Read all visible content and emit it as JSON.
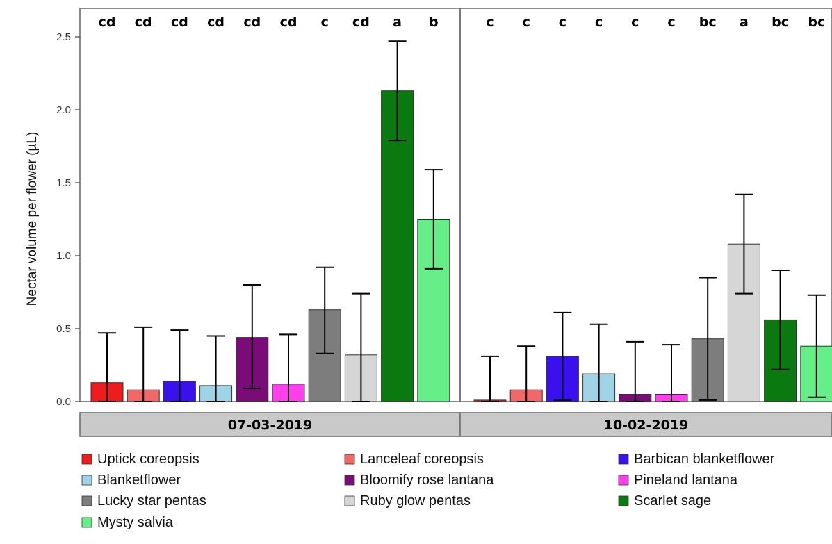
{
  "chart_data": {
    "type": "bar",
    "ylabel": "Nectar volume per flower (µL)",
    "ylim": [
      0,
      2.6
    ],
    "yticks": [
      0.0,
      0.5,
      1.0,
      1.5,
      2.0,
      2.5
    ],
    "ytick_labels": [
      "0.0",
      "0.5",
      "1.0",
      "1.5",
      "2.0",
      "2.5"
    ],
    "grid": false,
    "legend_position": "bottom",
    "categories": [
      "Uptick coreopsis",
      "Lanceleaf coreopsis",
      "Barbican blanketflower",
      "Blanketflower",
      "Bloomify rose lantana",
      "Pineland lantana",
      "Lucky star pentas",
      "Ruby glow pentas",
      "Scarlet sage",
      "Mysty salvia"
    ],
    "colors": [
      "#ee1c1c",
      "#f26868",
      "#3a10ee",
      "#9fd3e6",
      "#7a0c78",
      "#ff3fec",
      "#7d7d7d",
      "#d6d6d6",
      "#0a7a10",
      "#66ee88"
    ],
    "panels": [
      {
        "label": "07-03-2019",
        "values": [
          0.13,
          0.08,
          0.14,
          0.11,
          0.44,
          0.12,
          0.63,
          0.32,
          2.13,
          1.25
        ],
        "err_low": [
          0.0,
          0.0,
          0.0,
          0.0,
          0.09,
          0.0,
          0.33,
          0.0,
          1.79,
          0.91
        ],
        "err_high": [
          0.47,
          0.51,
          0.49,
          0.45,
          0.8,
          0.46,
          0.92,
          0.74,
          2.47,
          1.59
        ],
        "letters": [
          "cd",
          "cd",
          "cd",
          "cd",
          "cd",
          "cd",
          "c",
          "cd",
          "a",
          "b"
        ]
      },
      {
        "label": "10-02-2019",
        "values": [
          0.01,
          0.08,
          0.31,
          0.19,
          0.05,
          0.05,
          0.43,
          1.08,
          0.56,
          0.38
        ],
        "err_low": [
          0.0,
          0.0,
          0.01,
          0.0,
          0.0,
          0.0,
          0.01,
          0.74,
          0.22,
          0.03
        ],
        "err_high": [
          0.31,
          0.38,
          0.61,
          0.53,
          0.41,
          0.39,
          0.85,
          1.42,
          0.9,
          0.73
        ],
        "letters": [
          "c",
          "c",
          "c",
          "c",
          "c",
          "c",
          "bc",
          "a",
          "bc",
          "bc"
        ]
      }
    ]
  }
}
